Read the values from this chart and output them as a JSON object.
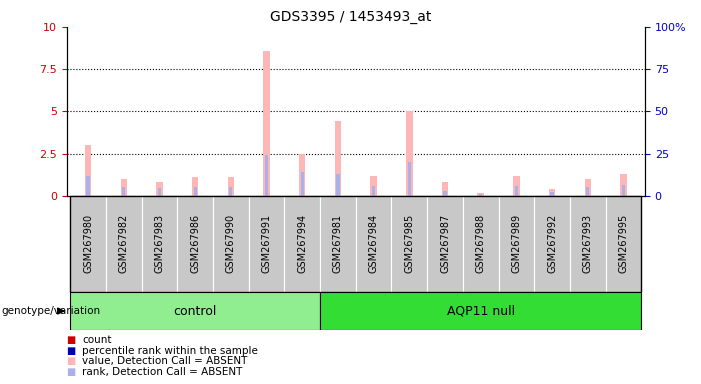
{
  "title": "GDS3395 / 1453493_at",
  "samples": [
    "GSM267980",
    "GSM267982",
    "GSM267983",
    "GSM267986",
    "GSM267990",
    "GSM267991",
    "GSM267994",
    "GSM267981",
    "GSM267984",
    "GSM267985",
    "GSM267987",
    "GSM267988",
    "GSM267989",
    "GSM267992",
    "GSM267993",
    "GSM267995"
  ],
  "groups": [
    {
      "name": "control",
      "count": 7,
      "color": "#90ee90"
    },
    {
      "name": "AQP11 null",
      "count": 9,
      "color": "#33dd33"
    }
  ],
  "values_absent": [
    3.0,
    1.0,
    0.8,
    1.1,
    1.1,
    8.6,
    2.5,
    4.4,
    1.2,
    5.0,
    0.8,
    0.15,
    1.2,
    0.4,
    1.0,
    1.3
  ],
  "rank_absent_pct": [
    12,
    5.5,
    4.5,
    5.5,
    5.0,
    24,
    14,
    13,
    6.0,
    20,
    3.0,
    1.0,
    6.0,
    2.0,
    5.5,
    6.5
  ],
  "count_red": [
    0.0,
    0.0,
    0.0,
    0.0,
    0.0,
    0.0,
    0.0,
    0.0,
    0.0,
    0.0,
    0.0,
    0.0,
    0.0,
    0.0,
    0.0,
    0.0
  ],
  "rank_blue_pct": [
    0.0,
    0.0,
    0.0,
    0.0,
    0.0,
    0.0,
    0.0,
    0.0,
    0.0,
    0.0,
    0.0,
    0.0,
    0.0,
    0.0,
    0.0,
    0.0
  ],
  "ylim_left": [
    0,
    10
  ],
  "ylim_right": [
    0,
    100
  ],
  "yticks_left": [
    0,
    2.5,
    5,
    7.5,
    10
  ],
  "yticks_right": [
    0,
    25,
    50,
    75,
    100
  ],
  "ylabel_left_color": "#cc0000",
  "ylabel_right_color": "#0000cc",
  "background_color": "#ffffff",
  "plot_bg_color": "#ffffff",
  "cell_bg_color": "#c8c8c8",
  "legend_items": [
    {
      "label": "count",
      "color": "#cc0000"
    },
    {
      "label": "percentile rank within the sample",
      "color": "#0000aa"
    },
    {
      "label": "value, Detection Call = ABSENT",
      "color": "#ffb6b6"
    },
    {
      "label": "rank, Detection Call = ABSENT",
      "color": "#aab0e8"
    }
  ]
}
